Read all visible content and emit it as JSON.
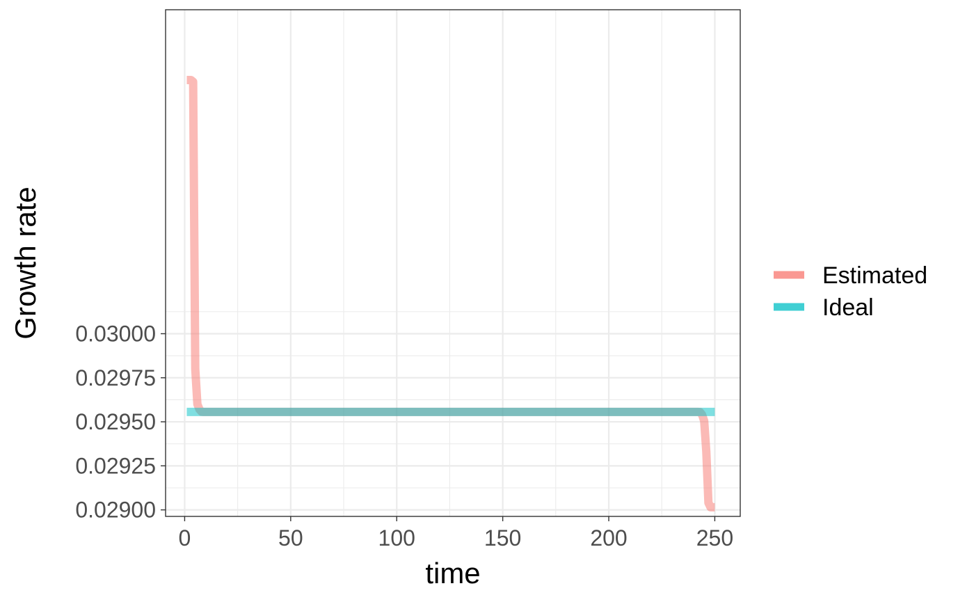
{
  "chart_data": {
    "type": "line",
    "title": "",
    "xlabel": "time",
    "ylabel": "Growth rate",
    "xlim": [
      -9,
      262
    ],
    "ylim": [
      0.028963,
      0.031839
    ],
    "x_ticks": [
      0,
      50,
      100,
      150,
      200,
      250
    ],
    "x_tick_labels": [
      "0",
      "50",
      "100",
      "150",
      "200",
      "250"
    ],
    "y_ticks": [
      0.029,
      0.02925,
      0.0295,
      0.02975,
      0.03
    ],
    "y_tick_labels": [
      "0.02900",
      "0.02925",
      "0.02950",
      "0.02975",
      "0.03000"
    ],
    "grid": true,
    "legend_position": "right",
    "series": [
      {
        "name": "Estimated",
        "color": "#F8766D",
        "x": [
          1,
          2,
          3,
          4,
          5,
          6,
          7,
          8,
          9,
          10,
          25,
          50,
          100,
          150,
          200,
          240,
          242,
          243,
          244,
          245,
          246,
          247,
          248,
          249,
          250
        ],
        "y": [
          0.03144,
          0.03144,
          0.03144,
          0.03143,
          0.0298,
          0.0296,
          0.02957,
          0.029557,
          0.029556,
          0.029556,
          0.029556,
          0.029556,
          0.029556,
          0.029556,
          0.029556,
          0.029556,
          0.029556,
          0.029555,
          0.02954,
          0.029505,
          0.02933,
          0.02904,
          0.029015,
          0.029015,
          0.029015
        ]
      },
      {
        "name": "Ideal",
        "color": "#00BFC4",
        "x": [
          1,
          250
        ],
        "y": [
          0.029556,
          0.029556
        ]
      }
    ]
  }
}
